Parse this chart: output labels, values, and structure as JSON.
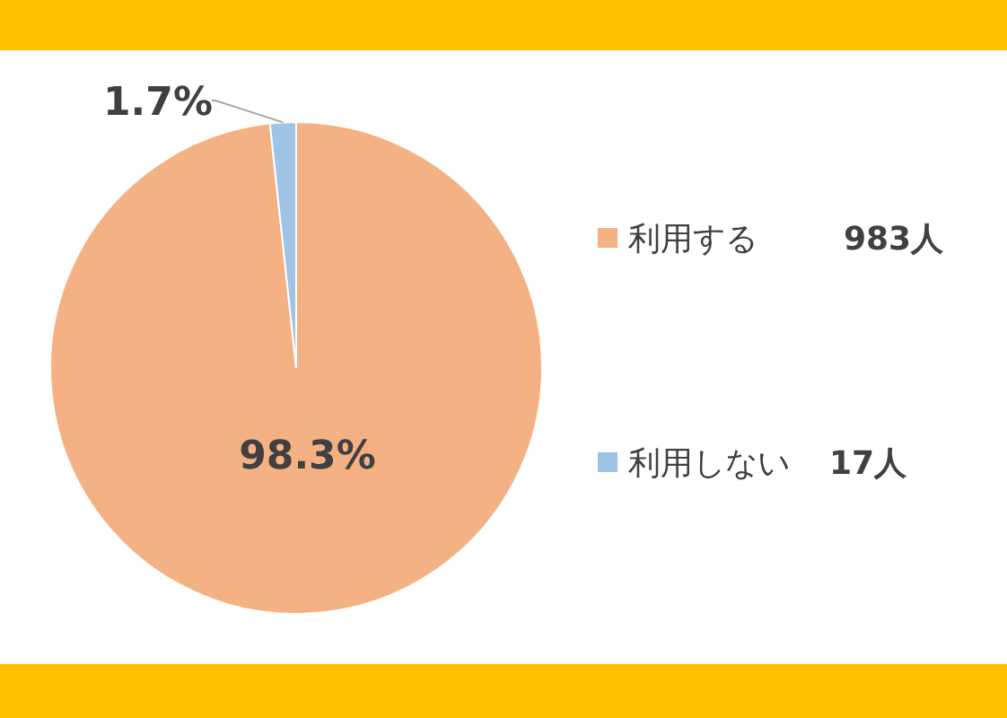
{
  "chart_data": {
    "type": "pie",
    "categories": [
      "利用する",
      "利用しない"
    ],
    "values": [
      98.3,
      1.7
    ],
    "value_labels": [
      "98.3%",
      "1.7%"
    ],
    "colors": [
      "#f4b183",
      "#9dc3e6"
    ],
    "annotations": [
      "983人",
      "17人"
    ],
    "legend": "right"
  }
}
